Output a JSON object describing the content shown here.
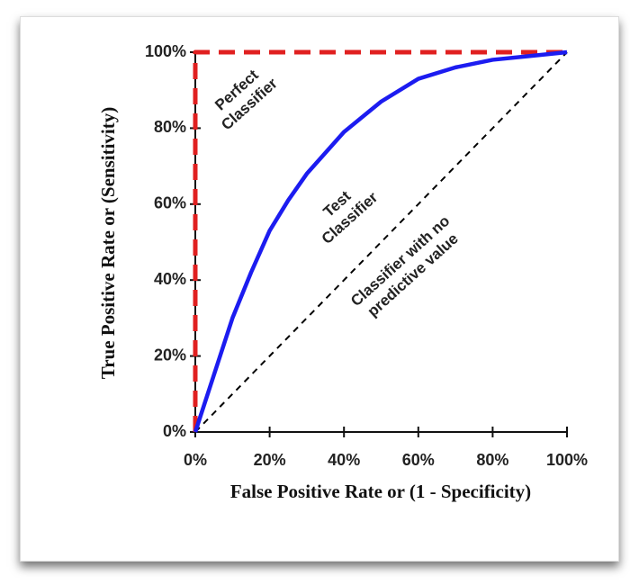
{
  "chart_data": {
    "type": "line",
    "xlabel": "False Positive Rate or (1 - Specificity)",
    "ylabel": "True Positive Rate or (Sensitivity)",
    "xlim": [
      0,
      100
    ],
    "ylim": [
      0,
      100
    ],
    "xticks": [
      {
        "value": 0,
        "label": "0%"
      },
      {
        "value": 20,
        "label": "20%"
      },
      {
        "value": 40,
        "label": "40%"
      },
      {
        "value": 60,
        "label": "60%"
      },
      {
        "value": 80,
        "label": "80%"
      },
      {
        "value": 100,
        "label": "100%"
      }
    ],
    "yticks": [
      {
        "value": 0,
        "label": "0%"
      },
      {
        "value": 20,
        "label": "20%"
      },
      {
        "value": 40,
        "label": "40%"
      },
      {
        "value": 60,
        "label": "60%"
      },
      {
        "value": 80,
        "label": "80%"
      },
      {
        "value": 100,
        "label": "100%"
      }
    ],
    "series": [
      {
        "color": "#e02020",
        "dashed": true,
        "width": 5,
        "x": [
          0,
          0,
          100
        ],
        "values": [
          0,
          100,
          100
        ]
      },
      {
        "color": "#000000",
        "dashed": true,
        "width": 2,
        "x": [
          0,
          100
        ],
        "values": [
          0,
          100
        ]
      },
      {
        "color": "#1c1cf0",
        "dashed": false,
        "width": 4.5,
        "x": [
          0,
          5,
          10,
          15,
          20,
          25,
          30,
          40,
          50,
          60,
          70,
          80,
          90,
          100
        ],
        "values": [
          0,
          15,
          30,
          42,
          53,
          61,
          68,
          79,
          87,
          93,
          96,
          98,
          99,
          100
        ]
      }
    ],
    "annotations": [
      {
        "lines": [
          "Perfect",
          "Classifier"
        ],
        "x": 13,
        "y": 88
      },
      {
        "lines": [
          "Test",
          "Classifier"
        ],
        "x": 40,
        "y": 58
      },
      {
        "lines": [
          "Classifier with no",
          "predictive value"
        ],
        "x": 57,
        "y": 43
      }
    ]
  }
}
